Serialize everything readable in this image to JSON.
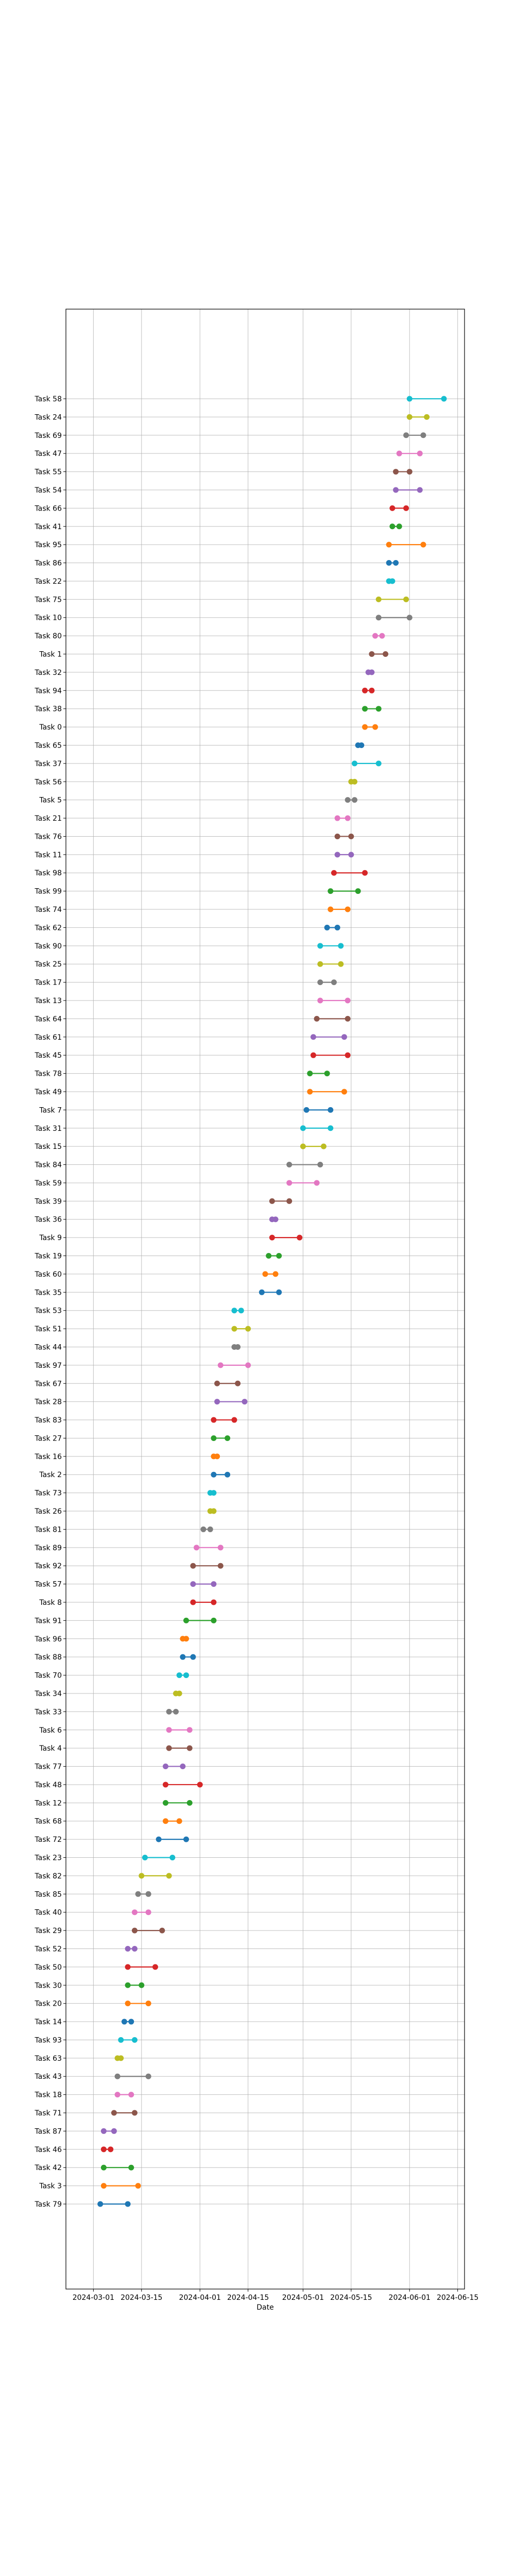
{
  "chart_data": {
    "type": "dumbbell",
    "xlabel": "Date",
    "ylabel": "",
    "grid": true,
    "x_ticks": [
      "2024-03-01",
      "2024-03-15",
      "2024-04-01",
      "2024-04-15",
      "2024-05-01",
      "2024-05-15",
      "2024-06-01",
      "2024-06-15"
    ],
    "xlim": [
      "2024-02-22",
      "2024-06-17"
    ],
    "tasks": [
      {
        "name": "Task 58",
        "start": "2024-06-01",
        "end": "2024-06-11",
        "color": "#17becf"
      },
      {
        "name": "Task 24",
        "start": "2024-06-01",
        "end": "2024-06-06",
        "color": "#bcbd22"
      },
      {
        "name": "Task 69",
        "start": "2024-05-31",
        "end": "2024-06-05",
        "color": "#7f7f7f"
      },
      {
        "name": "Task 47",
        "start": "2024-05-29",
        "end": "2024-06-04",
        "color": "#e377c2"
      },
      {
        "name": "Task 55",
        "start": "2024-05-28",
        "end": "2024-06-01",
        "color": "#8c564b"
      },
      {
        "name": "Task 54",
        "start": "2024-05-28",
        "end": "2024-06-04",
        "color": "#9467bd"
      },
      {
        "name": "Task 66",
        "start": "2024-05-27",
        "end": "2024-05-31",
        "color": "#d62728"
      },
      {
        "name": "Task 41",
        "start": "2024-05-27",
        "end": "2024-05-29",
        "color": "#2ca02c"
      },
      {
        "name": "Task 95",
        "start": "2024-05-26",
        "end": "2024-06-05",
        "color": "#ff7f0e"
      },
      {
        "name": "Task 86",
        "start": "2024-05-26",
        "end": "2024-05-28",
        "color": "#1f77b4"
      },
      {
        "name": "Task 22",
        "start": "2024-05-26",
        "end": "2024-05-27",
        "color": "#17becf"
      },
      {
        "name": "Task 75",
        "start": "2024-05-23",
        "end": "2024-05-31",
        "color": "#bcbd22"
      },
      {
        "name": "Task 10",
        "start": "2024-05-23",
        "end": "2024-06-01",
        "color": "#7f7f7f"
      },
      {
        "name": "Task 80",
        "start": "2024-05-22",
        "end": "2024-05-24",
        "color": "#e377c2"
      },
      {
        "name": "Task 1",
        "start": "2024-05-21",
        "end": "2024-05-25",
        "color": "#8c564b"
      },
      {
        "name": "Task 32",
        "start": "2024-05-20",
        "end": "2024-05-21",
        "color": "#9467bd"
      },
      {
        "name": "Task 94",
        "start": "2024-05-19",
        "end": "2024-05-21",
        "color": "#d62728"
      },
      {
        "name": "Task 38",
        "start": "2024-05-19",
        "end": "2024-05-23",
        "color": "#2ca02c"
      },
      {
        "name": "Task 0",
        "start": "2024-05-19",
        "end": "2024-05-22",
        "color": "#ff7f0e"
      },
      {
        "name": "Task 65",
        "start": "2024-05-17",
        "end": "2024-05-18",
        "color": "#1f77b4"
      },
      {
        "name": "Task 37",
        "start": "2024-05-16",
        "end": "2024-05-23",
        "color": "#17becf"
      },
      {
        "name": "Task 56",
        "start": "2024-05-15",
        "end": "2024-05-16",
        "color": "#bcbd22"
      },
      {
        "name": "Task 5",
        "start": "2024-05-14",
        "end": "2024-05-16",
        "color": "#7f7f7f"
      },
      {
        "name": "Task 21",
        "start": "2024-05-11",
        "end": "2024-05-14",
        "color": "#e377c2"
      },
      {
        "name": "Task 76",
        "start": "2024-05-11",
        "end": "2024-05-15",
        "color": "#8c564b"
      },
      {
        "name": "Task 11",
        "start": "2024-05-11",
        "end": "2024-05-15",
        "color": "#9467bd"
      },
      {
        "name": "Task 98",
        "start": "2024-05-10",
        "end": "2024-05-19",
        "color": "#d62728"
      },
      {
        "name": "Task 99",
        "start": "2024-05-09",
        "end": "2024-05-17",
        "color": "#2ca02c"
      },
      {
        "name": "Task 74",
        "start": "2024-05-09",
        "end": "2024-05-14",
        "color": "#ff7f0e"
      },
      {
        "name": "Task 62",
        "start": "2024-05-08",
        "end": "2024-05-11",
        "color": "#1f77b4"
      },
      {
        "name": "Task 90",
        "start": "2024-05-06",
        "end": "2024-05-12",
        "color": "#17becf"
      },
      {
        "name": "Task 25",
        "start": "2024-05-06",
        "end": "2024-05-12",
        "color": "#bcbd22"
      },
      {
        "name": "Task 17",
        "start": "2024-05-06",
        "end": "2024-05-10",
        "color": "#7f7f7f"
      },
      {
        "name": "Task 13",
        "start": "2024-05-06",
        "end": "2024-05-14",
        "color": "#e377c2"
      },
      {
        "name": "Task 64",
        "start": "2024-05-05",
        "end": "2024-05-14",
        "color": "#8c564b"
      },
      {
        "name": "Task 61",
        "start": "2024-05-04",
        "end": "2024-05-13",
        "color": "#9467bd"
      },
      {
        "name": "Task 45",
        "start": "2024-05-04",
        "end": "2024-05-14",
        "color": "#d62728"
      },
      {
        "name": "Task 78",
        "start": "2024-05-03",
        "end": "2024-05-08",
        "color": "#2ca02c"
      },
      {
        "name": "Task 49",
        "start": "2024-05-03",
        "end": "2024-05-13",
        "color": "#ff7f0e"
      },
      {
        "name": "Task 7",
        "start": "2024-05-02",
        "end": "2024-05-09",
        "color": "#1f77b4"
      },
      {
        "name": "Task 31",
        "start": "2024-05-01",
        "end": "2024-05-09",
        "color": "#17becf"
      },
      {
        "name": "Task 15",
        "start": "2024-05-01",
        "end": "2024-05-07",
        "color": "#bcbd22"
      },
      {
        "name": "Task 84",
        "start": "2024-04-27",
        "end": "2024-05-06",
        "color": "#7f7f7f"
      },
      {
        "name": "Task 59",
        "start": "2024-04-27",
        "end": "2024-05-05",
        "color": "#e377c2"
      },
      {
        "name": "Task 39",
        "start": "2024-04-22",
        "end": "2024-04-27",
        "color": "#8c564b"
      },
      {
        "name": "Task 36",
        "start": "2024-04-22",
        "end": "2024-04-23",
        "color": "#9467bd"
      },
      {
        "name": "Task 9",
        "start": "2024-04-22",
        "end": "2024-04-30",
        "color": "#d62728"
      },
      {
        "name": "Task 19",
        "start": "2024-04-21",
        "end": "2024-04-24",
        "color": "#2ca02c"
      },
      {
        "name": "Task 60",
        "start": "2024-04-20",
        "end": "2024-04-23",
        "color": "#ff7f0e"
      },
      {
        "name": "Task 35",
        "start": "2024-04-19",
        "end": "2024-04-24",
        "color": "#1f77b4"
      },
      {
        "name": "Task 53",
        "start": "2024-04-11",
        "end": "2024-04-13",
        "color": "#17becf"
      },
      {
        "name": "Task 51",
        "start": "2024-04-11",
        "end": "2024-04-15",
        "color": "#bcbd22"
      },
      {
        "name": "Task 44",
        "start": "2024-04-11",
        "end": "2024-04-12",
        "color": "#7f7f7f"
      },
      {
        "name": "Task 97",
        "start": "2024-04-07",
        "end": "2024-04-15",
        "color": "#e377c2"
      },
      {
        "name": "Task 67",
        "start": "2024-04-06",
        "end": "2024-04-12",
        "color": "#8c564b"
      },
      {
        "name": "Task 28",
        "start": "2024-04-06",
        "end": "2024-04-14",
        "color": "#9467bd"
      },
      {
        "name": "Task 83",
        "start": "2024-04-05",
        "end": "2024-04-11",
        "color": "#d62728"
      },
      {
        "name": "Task 27",
        "start": "2024-04-05",
        "end": "2024-04-09",
        "color": "#2ca02c"
      },
      {
        "name": "Task 16",
        "start": "2024-04-05",
        "end": "2024-04-06",
        "color": "#ff7f0e"
      },
      {
        "name": "Task 2",
        "start": "2024-04-05",
        "end": "2024-04-09",
        "color": "#1f77b4"
      },
      {
        "name": "Task 73",
        "start": "2024-04-04",
        "end": "2024-04-05",
        "color": "#17becf"
      },
      {
        "name": "Task 26",
        "start": "2024-04-04",
        "end": "2024-04-05",
        "color": "#bcbd22"
      },
      {
        "name": "Task 81",
        "start": "2024-04-02",
        "end": "2024-04-04",
        "color": "#7f7f7f"
      },
      {
        "name": "Task 89",
        "start": "2024-03-31",
        "end": "2024-04-07",
        "color": "#e377c2"
      },
      {
        "name": "Task 92",
        "start": "2024-03-30",
        "end": "2024-04-07",
        "color": "#8c564b"
      },
      {
        "name": "Task 57",
        "start": "2024-03-30",
        "end": "2024-04-05",
        "color": "#9467bd"
      },
      {
        "name": "Task 8",
        "start": "2024-03-30",
        "end": "2024-04-05",
        "color": "#d62728"
      },
      {
        "name": "Task 91",
        "start": "2024-03-28",
        "end": "2024-04-05",
        "color": "#2ca02c"
      },
      {
        "name": "Task 96",
        "start": "2024-03-27",
        "end": "2024-03-28",
        "color": "#ff7f0e"
      },
      {
        "name": "Task 88",
        "start": "2024-03-27",
        "end": "2024-03-30",
        "color": "#1f77b4"
      },
      {
        "name": "Task 70",
        "start": "2024-03-26",
        "end": "2024-03-28",
        "color": "#17becf"
      },
      {
        "name": "Task 34",
        "start": "2024-03-25",
        "end": "2024-03-26",
        "color": "#bcbd22"
      },
      {
        "name": "Task 33",
        "start": "2024-03-23",
        "end": "2024-03-25",
        "color": "#7f7f7f"
      },
      {
        "name": "Task 6",
        "start": "2024-03-23",
        "end": "2024-03-29",
        "color": "#e377c2"
      },
      {
        "name": "Task 4",
        "start": "2024-03-23",
        "end": "2024-03-29",
        "color": "#8c564b"
      },
      {
        "name": "Task 77",
        "start": "2024-03-22",
        "end": "2024-03-27",
        "color": "#9467bd"
      },
      {
        "name": "Task 48",
        "start": "2024-03-22",
        "end": "2024-04-01",
        "color": "#d62728"
      },
      {
        "name": "Task 12",
        "start": "2024-03-22",
        "end": "2024-03-29",
        "color": "#2ca02c"
      },
      {
        "name": "Task 68",
        "start": "2024-03-22",
        "end": "2024-03-26",
        "color": "#ff7f0e"
      },
      {
        "name": "Task 72",
        "start": "2024-03-20",
        "end": "2024-03-28",
        "color": "#1f77b4"
      },
      {
        "name": "Task 23",
        "start": "2024-03-16",
        "end": "2024-03-24",
        "color": "#17becf"
      },
      {
        "name": "Task 82",
        "start": "2024-03-15",
        "end": "2024-03-23",
        "color": "#bcbd22"
      },
      {
        "name": "Task 85",
        "start": "2024-03-14",
        "end": "2024-03-17",
        "color": "#7f7f7f"
      },
      {
        "name": "Task 40",
        "start": "2024-03-13",
        "end": "2024-03-17",
        "color": "#e377c2"
      },
      {
        "name": "Task 29",
        "start": "2024-03-13",
        "end": "2024-03-21",
        "color": "#8c564b"
      },
      {
        "name": "Task 52",
        "start": "2024-03-11",
        "end": "2024-03-13",
        "color": "#9467bd"
      },
      {
        "name": "Task 50",
        "start": "2024-03-11",
        "end": "2024-03-19",
        "color": "#d62728"
      },
      {
        "name": "Task 30",
        "start": "2024-03-11",
        "end": "2024-03-15",
        "color": "#2ca02c"
      },
      {
        "name": "Task 20",
        "start": "2024-03-11",
        "end": "2024-03-17",
        "color": "#ff7f0e"
      },
      {
        "name": "Task 14",
        "start": "2024-03-10",
        "end": "2024-03-12",
        "color": "#1f77b4"
      },
      {
        "name": "Task 93",
        "start": "2024-03-09",
        "end": "2024-03-13",
        "color": "#17becf"
      },
      {
        "name": "Task 63",
        "start": "2024-03-08",
        "end": "2024-03-09",
        "color": "#bcbd22"
      },
      {
        "name": "Task 43",
        "start": "2024-03-08",
        "end": "2024-03-17",
        "color": "#7f7f7f"
      },
      {
        "name": "Task 18",
        "start": "2024-03-08",
        "end": "2024-03-12",
        "color": "#e377c2"
      },
      {
        "name": "Task 71",
        "start": "2024-03-07",
        "end": "2024-03-13",
        "color": "#8c564b"
      },
      {
        "name": "Task 87",
        "start": "2024-03-04",
        "end": "2024-03-07",
        "color": "#9467bd"
      },
      {
        "name": "Task 46",
        "start": "2024-03-04",
        "end": "2024-03-06",
        "color": "#d62728"
      },
      {
        "name": "Task 42",
        "start": "2024-03-04",
        "end": "2024-03-12",
        "color": "#2ca02c"
      },
      {
        "name": "Task 3",
        "start": "2024-03-04",
        "end": "2024-03-14",
        "color": "#ff7f0e"
      },
      {
        "name": "Task 79",
        "start": "2024-03-03",
        "end": "2024-03-11",
        "color": "#1f77b4"
      }
    ]
  }
}
